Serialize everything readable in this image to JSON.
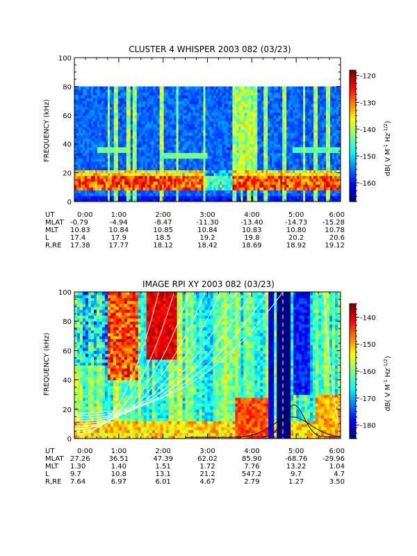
{
  "chart_data": [
    {
      "type": "heatmap",
      "title": "CLUSTER 4 WHISPER 2003 082 (03/23)",
      "ylabel": "FREQUENCY (kHz)",
      "ylim": [
        0,
        100
      ],
      "yticks": [
        "0",
        "20",
        "40",
        "60",
        "80",
        "100"
      ],
      "xlim_hours": [
        0,
        6
      ],
      "data_top_khz": 80,
      "colorbar": {
        "label": "dB( V M⁻¹ Hz⁻¹ᐟ²)",
        "label_parts": [
          "dB( V M",
          "-1",
          " Hz",
          "-1/2",
          ")"
        ],
        "ticks": [
          "-120",
          "-130",
          "-140",
          "-150",
          "-160"
        ],
        "range": [
          -167,
          -118
        ]
      },
      "features": {
        "background_db": -156,
        "low_band_khz": [
          8,
          22
        ],
        "low_band_db": -128,
        "mid_line_khz": 36,
        "spikes_hours": [
          0.75,
          0.9,
          1.2,
          1.35,
          1.95,
          2.3,
          2.9,
          3.6,
          3.75,
          3.9,
          4.05,
          4.3,
          4.7,
          5.15,
          5.4,
          5.7
        ]
      },
      "ephemeris": {
        "rows": [
          {
            "label": "UT",
            "values": [
              "0:00",
              "1:00",
              "2:00",
              "3:00",
              "4:00",
              "5:00",
              "6:00"
            ]
          },
          {
            "label": "MLAT",
            "values": [
              "-0.79",
              "-4.94",
              "-8.47",
              "-11.30",
              "-13.40",
              "-14.73",
              "-15.28"
            ]
          },
          {
            "label": "MLT",
            "values": [
              "10.83",
              "10.84",
              "10.85",
              "10.84",
              "10.83",
              "10.80",
              "10.78"
            ]
          },
          {
            "label": "L",
            "values": [
              "17.4",
              "17.9",
              "18.5",
              "19.2",
              "19.8",
              "20.2",
              "20.6"
            ]
          },
          {
            "label": "R,RE",
            "values": [
              "17.38",
              "17.77",
              "18.12",
              "18.42",
              "18.69",
              "18.92",
              "19.12"
            ]
          }
        ]
      }
    },
    {
      "type": "heatmap",
      "title": "IMAGE RPI XY 2003 082 (03/23)",
      "ylabel": "FREQUENCY (kHz)",
      "ylim": [
        0,
        100
      ],
      "yticks": [
        "0",
        "20",
        "40",
        "60",
        "80",
        "100"
      ],
      "xlim_hours": [
        0,
        6
      ],
      "data_top_khz": 100,
      "colorbar": {
        "label": "dB( V M⁻¹ Hz⁻¹ᐟ²)",
        "label_parts": [
          "dB( V M",
          "-1",
          " Hz",
          "-1/2",
          ")"
        ],
        "ticks": [
          "-140",
          "-150",
          "-160",
          "-170",
          "-180"
        ],
        "range": [
          -185,
          -135
        ]
      },
      "features": {
        "red_block_hours": [
          1.6,
          2.3
        ],
        "dark_band_hours": [
          4.55,
          4.85
        ],
        "white_curves_count": 9
      },
      "ephemeris": {
        "rows": [
          {
            "label": "UT",
            "values": [
              "0:00",
              "1:00",
              "2:00",
              "3:00",
              "4:00",
              "5:00",
              "6:00"
            ]
          },
          {
            "label": "MLAT",
            "values": [
              "27.26",
              "36.51",
              "47.39",
              "62.02",
              "85.90",
              "-68.76",
              "-29.96"
            ]
          },
          {
            "label": "MLT",
            "values": [
              "1.30",
              "1.40",
              "1.51",
              "1.72",
              "7.76",
              "13.22",
              "1.04"
            ]
          },
          {
            "label": "L",
            "values": [
              "9.7",
              "10.8",
              "13.1",
              "21.2",
              "547.2",
              "9.7",
              "4.7"
            ]
          },
          {
            "label": "R,RE",
            "values": [
              "7.64",
              "6.97",
              "6.01",
              "4.67",
              "2.79",
              "1.27",
              "3.50"
            ]
          }
        ]
      }
    }
  ]
}
